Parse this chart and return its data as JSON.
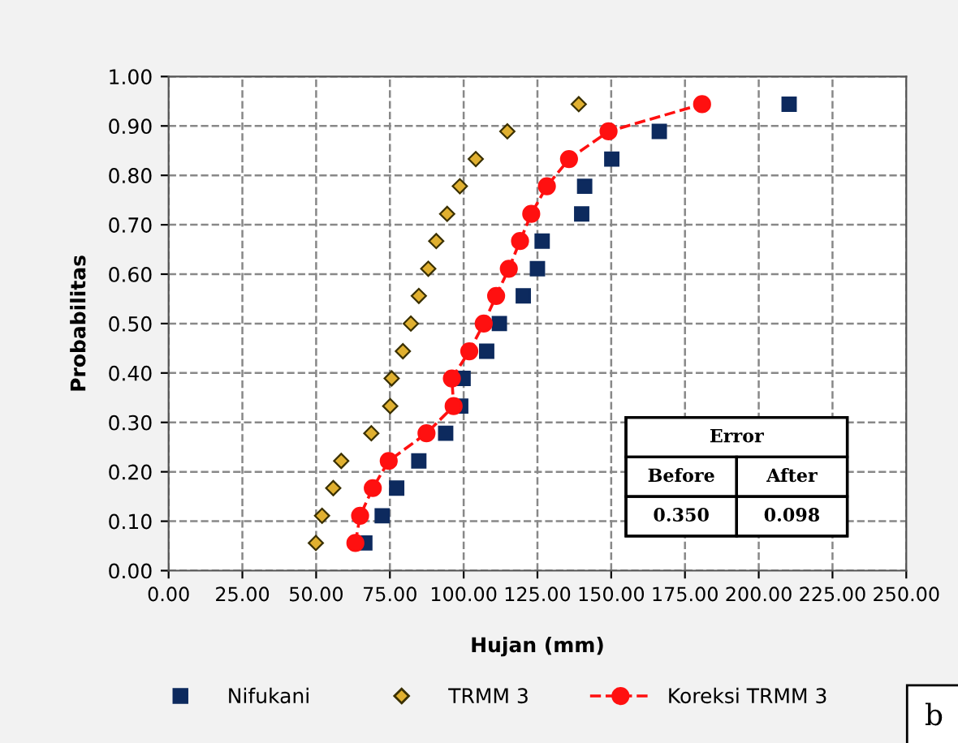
{
  "chart_data": {
    "type": "scatter",
    "xlabel": "Hujan (mm)",
    "ylabel": "Probabilitas",
    "xlim": [
      0,
      250
    ],
    "xticks": [
      {
        "value": 0,
        "label": "0.00"
      },
      {
        "value": 25,
        "label": "25.00"
      },
      {
        "value": 50,
        "label": "50.00"
      },
      {
        "value": 75,
        "label": "75.00"
      },
      {
        "value": 100,
        "label": "100.00"
      },
      {
        "value": 125,
        "label": "125.00"
      },
      {
        "value": 150,
        "label": "150.00"
      },
      {
        "value": 175,
        "label": "175.00"
      },
      {
        "value": 200,
        "label": "200.00"
      },
      {
        "value": 225,
        "label": "225.00"
      },
      {
        "value": 250,
        "label": "250.00"
      }
    ],
    "ylim": [
      0,
      1
    ],
    "yticks": [
      {
        "value": 0,
        "label": "0.00"
      },
      {
        "value": 0.1,
        "label": "0.10"
      },
      {
        "value": 0.2,
        "label": "0.20"
      },
      {
        "value": 0.3,
        "label": "0.30"
      },
      {
        "value": 0.4,
        "label": "0.40"
      },
      {
        "value": 0.5,
        "label": "0.50"
      },
      {
        "value": 0.6,
        "label": "0.60"
      },
      {
        "value": 0.7,
        "label": "0.70"
      },
      {
        "value": 0.8,
        "label": "0.80"
      },
      {
        "value": 0.9,
        "label": "0.90"
      },
      {
        "value": 1,
        "label": "1.00"
      }
    ],
    "grid": true,
    "legend": "bottom",
    "series": [
      {
        "name": "Nifukani",
        "marker": "square",
        "color": "#0d2a5e",
        "x": [
          66.5,
          72.4,
          77.3,
          84.8,
          93.9,
          99,
          99.8,
          107.8,
          112.1,
          120.2,
          125,
          126.6,
          140,
          141,
          150.2,
          166.3,
          210.3
        ],
        "values": [
          0.056,
          0.111,
          0.167,
          0.222,
          0.278,
          0.333,
          0.389,
          0.444,
          0.5,
          0.556,
          0.611,
          0.667,
          0.722,
          0.778,
          0.833,
          0.889,
          0.944
        ]
      },
      {
        "name": "TRMM 3",
        "marker": "diamond",
        "color": "#e0b030",
        "x": [
          49.9,
          52,
          55.8,
          58.5,
          68.7,
          75.1,
          75.6,
          79.4,
          82.1,
          84.8,
          88,
          90.7,
          94.4,
          98.7,
          104.1,
          114.8,
          139
        ],
        "values": [
          0.056,
          0.111,
          0.167,
          0.222,
          0.278,
          0.333,
          0.389,
          0.444,
          0.5,
          0.556,
          0.611,
          0.667,
          0.722,
          0.778,
          0.833,
          0.889,
          0.944
        ]
      },
      {
        "name": "Koreksi TRMM 3",
        "type": "line",
        "marker": "circle",
        "line_style": "dashed",
        "color": "#ff1010",
        "x": [
          63.3,
          64.9,
          69.2,
          74.6,
          87.4,
          96.6,
          96,
          101.9,
          106.8,
          111,
          115.3,
          119.1,
          122.9,
          128.2,
          135.7,
          149.1,
          180.8
        ],
        "values": [
          0.056,
          0.111,
          0.167,
          0.222,
          0.278,
          0.333,
          0.389,
          0.444,
          0.5,
          0.556,
          0.611,
          0.667,
          0.722,
          0.778,
          0.833,
          0.889,
          0.944
        ]
      }
    ],
    "annotations": [
      "Error",
      "Before",
      "After",
      "0.350",
      "0.098",
      "b"
    ]
  }
}
